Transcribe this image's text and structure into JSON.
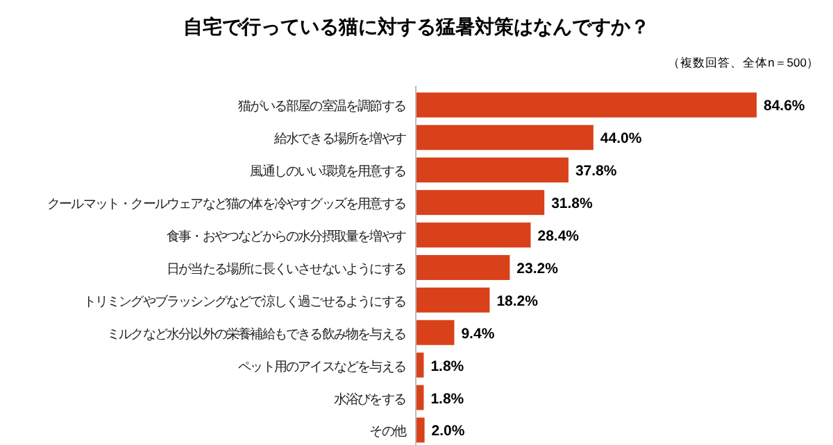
{
  "chart_data": {
    "type": "bar",
    "orientation": "horizontal",
    "title": "自宅で行っている猫に対する猛暑対策はなんですか？",
    "subtitle": "（複数回答、全体n＝500）",
    "categories": [
      "猫がいる部屋の室温を調節する",
      "給水できる場所を増やす",
      "風通しのいい環境を用意する",
      "クールマット・クールウェアなど猫の体を冷やすグッズを用意する",
      "食事・おやつなどからの水分摂取量を増やす",
      "日が当たる場所に長くいさせないようにする",
      "トリミングやブラッシングなどで涼しく過ごせるようにする",
      "ミルクなど水分以外の栄養補給もできる飲み物を与える",
      "ペット用のアイスなどを与える",
      "水浴びをする",
      "その他"
    ],
    "values": [
      84.6,
      44.0,
      37.8,
      31.8,
      28.4,
      23.2,
      18.2,
      9.4,
      1.8,
      1.8,
      2.0
    ],
    "value_labels": [
      "84.6%",
      "44.0%",
      "37.8%",
      "31.8%",
      "28.4%",
      "23.2%",
      "18.2%",
      "9.4%",
      "1.8%",
      "1.8%",
      "2.0%"
    ],
    "color": "#d9411a"
  }
}
